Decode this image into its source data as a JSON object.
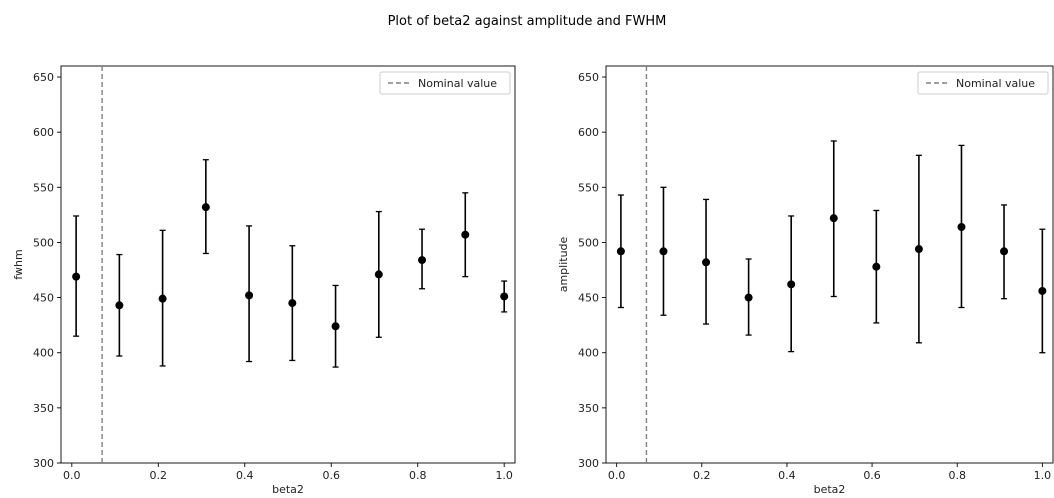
{
  "title": "Plot of beta2 against amplitude and FWHM",
  "chart_data": [
    {
      "type": "scatter",
      "xlabel": "beta2",
      "ylabel": "fwhm",
      "xlim": [
        -0.025,
        1.025
      ],
      "ylim": [
        300,
        660
      ],
      "xticks": [
        0.0,
        0.2,
        0.4,
        0.6,
        0.8,
        1.0
      ],
      "xtick_labels": [
        "0.0",
        "0.2",
        "0.4",
        "0.6",
        "0.8",
        "1.0"
      ],
      "yticks": [
        300,
        350,
        400,
        450,
        500,
        550,
        600,
        650
      ],
      "ytick_labels": [
        "300",
        "350",
        "400",
        "450",
        "500",
        "550",
        "600",
        "650"
      ],
      "nominal_value": 0.07,
      "legend": {
        "label": "Nominal value",
        "position": "top-right"
      },
      "points": [
        {
          "x": 0.01,
          "y": 469,
          "err_low": 415,
          "err_high": 524
        },
        {
          "x": 0.11,
          "y": 443,
          "err_low": 397,
          "err_high": 489
        },
        {
          "x": 0.21,
          "y": 449,
          "err_low": 388,
          "err_high": 511
        },
        {
          "x": 0.31,
          "y": 532,
          "err_low": 490,
          "err_high": 575
        },
        {
          "x": 0.41,
          "y": 452,
          "err_low": 392,
          "err_high": 515
        },
        {
          "x": 0.51,
          "y": 445,
          "err_low": 393,
          "err_high": 497
        },
        {
          "x": 0.61,
          "y": 424,
          "err_low": 387,
          "err_high": 461
        },
        {
          "x": 0.71,
          "y": 471,
          "err_low": 414,
          "err_high": 528
        },
        {
          "x": 0.81,
          "y": 484,
          "err_low": 458,
          "err_high": 512
        },
        {
          "x": 0.91,
          "y": 507,
          "err_low": 469,
          "err_high": 545
        },
        {
          "x": 1.0,
          "y": 451,
          "err_low": 437,
          "err_high": 465
        }
      ]
    },
    {
      "type": "scatter",
      "xlabel": "beta2",
      "ylabel": "amplitude",
      "xlim": [
        -0.025,
        1.025
      ],
      "ylim": [
        300,
        660
      ],
      "xticks": [
        0.0,
        0.2,
        0.4,
        0.6,
        0.8,
        1.0
      ],
      "xtick_labels": [
        "0.0",
        "0.2",
        "0.4",
        "0.6",
        "0.8",
        "1.0"
      ],
      "yticks": [
        300,
        350,
        400,
        450,
        500,
        550,
        600,
        650
      ],
      "ytick_labels": [
        "300",
        "350",
        "400",
        "450",
        "500",
        "550",
        "600",
        "650"
      ],
      "nominal_value": 0.07,
      "legend": {
        "label": "Nominal value",
        "position": "top-right"
      },
      "points": [
        {
          "x": 0.01,
          "y": 492,
          "err_low": 441,
          "err_high": 543
        },
        {
          "x": 0.11,
          "y": 492,
          "err_low": 434,
          "err_high": 550
        },
        {
          "x": 0.21,
          "y": 482,
          "err_low": 426,
          "err_high": 539
        },
        {
          "x": 0.31,
          "y": 450,
          "err_low": 416,
          "err_high": 485
        },
        {
          "x": 0.41,
          "y": 462,
          "err_low": 401,
          "err_high": 524
        },
        {
          "x": 0.51,
          "y": 522,
          "err_low": 451,
          "err_high": 592
        },
        {
          "x": 0.61,
          "y": 478,
          "err_low": 427,
          "err_high": 529
        },
        {
          "x": 0.71,
          "y": 494,
          "err_low": 409,
          "err_high": 579
        },
        {
          "x": 0.81,
          "y": 514,
          "err_low": 441,
          "err_high": 588
        },
        {
          "x": 0.91,
          "y": 492,
          "err_low": 449,
          "err_high": 534
        },
        {
          "x": 1.0,
          "y": 456,
          "err_low": 400,
          "err_high": 512
        }
      ]
    }
  ]
}
